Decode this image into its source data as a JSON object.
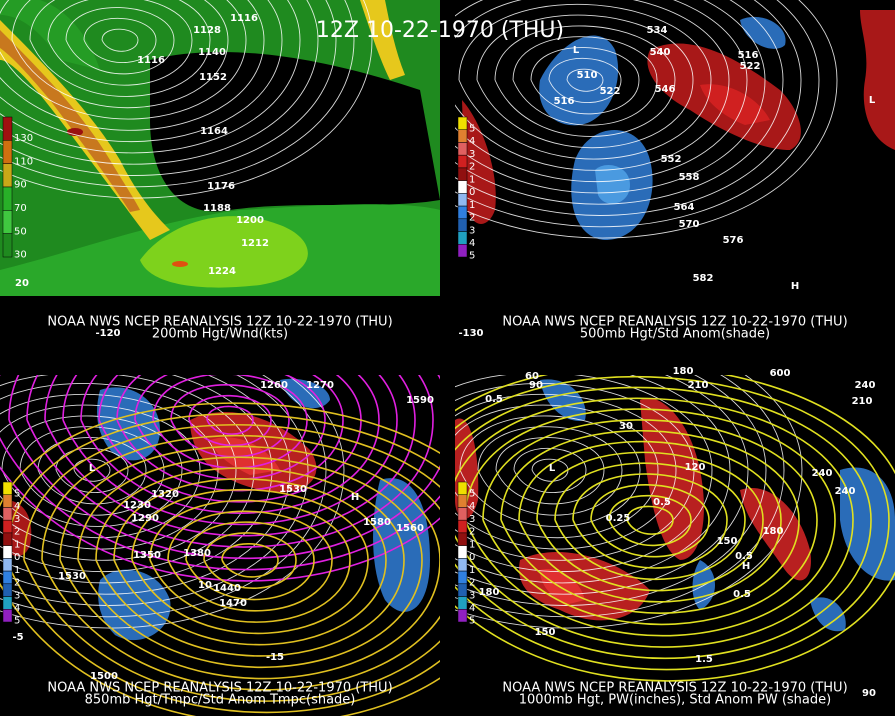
{
  "title": "12Z 10-22-1970 (THU)",
  "panels": [
    {
      "caption": "NOAA NWS NCEP REANALYSIS 12Z 10-22-1970 (THU)",
      "subtitle": "200mb Hgt/Wnd(kts)",
      "legend": [
        "130",
        "110",
        "90",
        "70",
        "50",
        "30"
      ],
      "labels": [
        "1128",
        "1116",
        "1116",
        "1140",
        "1152",
        "1164",
        "1176",
        "1188",
        "1200",
        "1212",
        "1224",
        "20",
        "-120"
      ]
    },
    {
      "caption": "NOAA NWS NCEP REANALYSIS 12Z 10-22-1970 (THU)",
      "subtitle": "500mb Hgt/Std Anom(shade)",
      "legend": [
        "5",
        "4",
        "3",
        "2",
        "1",
        "0",
        "1",
        "2",
        "3",
        "4",
        "5"
      ],
      "labels": [
        "534",
        "540",
        "546",
        "516",
        "522",
        "510",
        "516",
        "522",
        "552",
        "558",
        "564",
        "570",
        "576",
        "582",
        "L",
        "L",
        "H",
        "-130"
      ]
    },
    {
      "caption": "NOAA NWS NCEP REANALYSIS 12Z 10-22-1970 (THU)",
      "subtitle": "850mb Hgt/Tmpc/Std Anom Tmpc(shade)",
      "legend": [
        "5",
        "4",
        "3",
        "2",
        "1",
        "0",
        "1",
        "2",
        "3",
        "4",
        "5"
      ],
      "labels": [
        "1260",
        "1270",
        "1230",
        "1290",
        "1320",
        "1350",
        "1380",
        "1440",
        "1470",
        "1530",
        "1530",
        "1560",
        "1590",
        "1580",
        "1500",
        "10",
        "-15",
        "-5",
        "L",
        "H"
      ]
    },
    {
      "caption": "NOAA NWS NCEP REANALYSIS 12Z 10-22-1970 (THU)",
      "subtitle": "1000mb Hgt, PW(inches), Std Anom PW (shade)",
      "legend": [
        "5",
        "4",
        "3",
        "2",
        "1",
        "0",
        "1",
        "2",
        "3",
        "4",
        "5"
      ],
      "labels": [
        "60",
        "90",
        "180",
        "210",
        "600",
        "240",
        "210",
        "0.5",
        "30",
        "120",
        "240",
        "240",
        "180",
        "150",
        "0.25",
        "0.5",
        "1.5",
        "150",
        "180",
        "0.5",
        "0.5",
        "90",
        "L",
        "H"
      ]
    }
  ]
}
